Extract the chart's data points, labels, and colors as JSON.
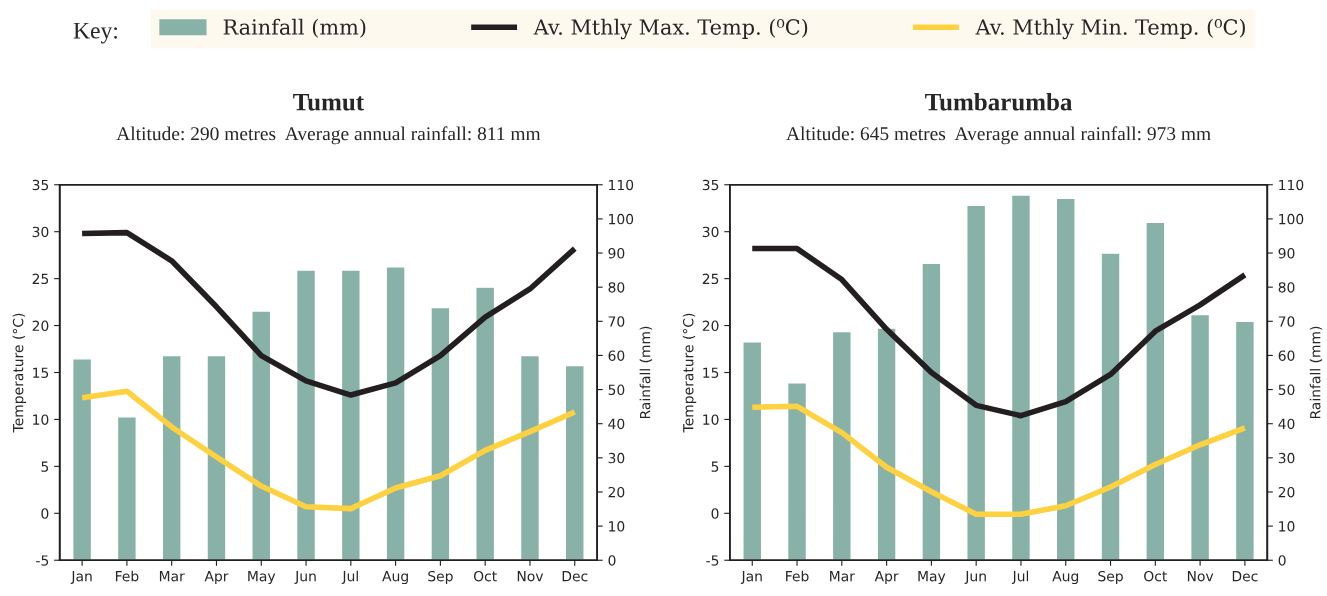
{
  "chart_data": [
    {
      "type": "bar",
      "title": "Tumut",
      "subtitle": "Altitude: 290 metres  Average annual rainfall: 811 mm",
      "ylabel": "Temperature (°C)",
      "y2label": "Rainfall (mm)",
      "legend_title": "Key:",
      "legend": "top",
      "categories": [
        "Jan",
        "Feb",
        "Mar",
        "Apr",
        "May",
        "Jun",
        "Jul",
        "Aug",
        "Sep",
        "Oct",
        "Nov",
        "Dec"
      ],
      "ylim": [
        -5,
        35
      ],
      "yticks": [
        -5,
        0,
        5,
        10,
        15,
        20,
        25,
        30,
        35
      ],
      "y2lim": [
        0,
        110
      ],
      "y2ticks": [
        0,
        10,
        20,
        30,
        40,
        50,
        60,
        70,
        80,
        90,
        100,
        110
      ],
      "series": [
        {
          "name": "Rainfall (mm)",
          "axis": "y2",
          "color": "#88b2a7",
          "values": [
            59,
            42,
            60,
            60,
            73,
            85,
            85,
            86,
            74,
            80,
            60,
            57
          ]
        },
        {
          "name": "Av. Mthly Max. Temp. (⁰C)",
          "type": "line",
          "color": "#231f20",
          "values": [
            29.8,
            29.9,
            26.9,
            22.0,
            16.8,
            14.1,
            12.6,
            13.9,
            16.8,
            20.9,
            23.9,
            28.2
          ]
        },
        {
          "name": "Av. Mthly Min. Temp. (⁰C)",
          "type": "line",
          "color": "#fdd13f",
          "values": [
            12.3,
            13.0,
            9.2,
            6.0,
            2.9,
            0.7,
            0.5,
            2.7,
            4.0,
            6.7,
            8.7,
            10.8
          ]
        }
      ]
    },
    {
      "type": "bar",
      "title": "Tumbarumba",
      "subtitle": "Altitude: 645 metres  Average annual rainfall: 973 mm",
      "ylabel": "Temperature (°C)",
      "y2label": "Rainfall (mm)",
      "categories": [
        "Jan",
        "Feb",
        "Mar",
        "Apr",
        "May",
        "Jun",
        "Jul",
        "Aug",
        "Sep",
        "Oct",
        "Nov",
        "Dec"
      ],
      "ylim": [
        -5,
        35
      ],
      "yticks": [
        -5,
        0,
        5,
        10,
        15,
        20,
        25,
        30,
        35
      ],
      "y2lim": [
        0,
        110
      ],
      "y2ticks": [
        0,
        10,
        20,
        30,
        40,
        50,
        60,
        70,
        80,
        90,
        100,
        110
      ],
      "series": [
        {
          "axis": "y2",
          "color": "#88b2a7",
          "values": [
            64,
            52,
            67,
            68,
            87,
            104,
            107,
            106,
            90,
            99,
            72,
            70
          ]
        },
        {
          "type": "line",
          "color": "#231f20",
          "values": [
            28.2,
            28.2,
            24.9,
            19.6,
            15.0,
            11.5,
            10.4,
            11.9,
            14.8,
            19.4,
            22.2,
            25.4
          ]
        },
        {
          "type": "line",
          "color": "#fdd13f",
          "values": [
            11.3,
            11.4,
            8.6,
            4.9,
            2.3,
            -0.1,
            -0.1,
            0.8,
            2.8,
            5.2,
            7.3,
            9.1
          ]
        }
      ]
    }
  ]
}
